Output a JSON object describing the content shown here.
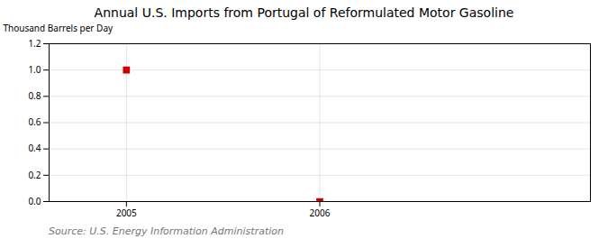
{
  "chart_data": {
    "type": "scatter",
    "title": "Annual U.S. Imports from Portugal of Reformulated Motor Gasoline",
    "ylabel": "Thousand Barrels per Day",
    "annotations": [
      "Source: U.S. Energy Information Administration"
    ],
    "x": [
      2005,
      2006
    ],
    "values": [
      1.0,
      0.0
    ],
    "color": "#cc0000",
    "marker": "square",
    "xlim": [
      2004.6,
      2007.4
    ],
    "ylim": [
      0.0,
      1.2
    ],
    "xticks": [
      2005,
      2006
    ],
    "yticks": [
      {
        "value": 0,
        "label": "0.0"
      },
      0.2,
      0.4,
      0.6,
      0.8,
      {
        "value": 1,
        "label": "1.0"
      },
      1.2
    ],
    "grid": true
  }
}
